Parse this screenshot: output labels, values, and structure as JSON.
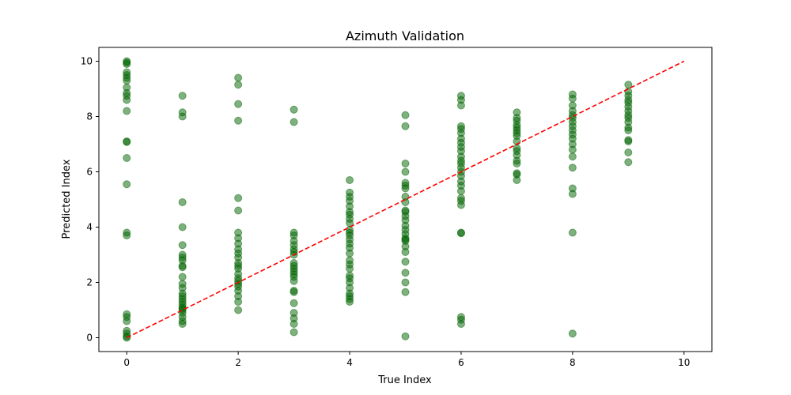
{
  "chart_data": {
    "type": "scatter",
    "title": "Azimuth Validation",
    "xlabel": "True Index",
    "ylabel": "Predicted Index",
    "xlim": [
      -0.5,
      10.5
    ],
    "ylim": [
      -0.5,
      10.5
    ],
    "xticks": [
      0,
      2,
      4,
      6,
      8,
      10
    ],
    "yticks": [
      0,
      2,
      4,
      6,
      8,
      10
    ],
    "grid": false,
    "point_color": "#006400",
    "reference_line": {
      "from": [
        0,
        0
      ],
      "to": [
        10,
        10
      ],
      "color": "#ff0000",
      "style": "dashed"
    },
    "points": [
      [
        0,
        10.0
      ],
      [
        0,
        9.95
      ],
      [
        0,
        9.9
      ],
      [
        0,
        9.6
      ],
      [
        0,
        9.5
      ],
      [
        0,
        9.4
      ],
      [
        0,
        9.3
      ],
      [
        0,
        9.05
      ],
      [
        0,
        8.85
      ],
      [
        0,
        8.75
      ],
      [
        0,
        8.6
      ],
      [
        0,
        8.2
      ],
      [
        0,
        7.1
      ],
      [
        0,
        7.08
      ],
      [
        0,
        6.5
      ],
      [
        0,
        5.55
      ],
      [
        0,
        3.8
      ],
      [
        0,
        3.7
      ],
      [
        0,
        0.85
      ],
      [
        0,
        0.75
      ],
      [
        0,
        0.6
      ],
      [
        0,
        0.25
      ],
      [
        0,
        0.15
      ],
      [
        0,
        0.05
      ],
      [
        0,
        0.0
      ],
      [
        1,
        8.75
      ],
      [
        1,
        8.15
      ],
      [
        1,
        8.0
      ],
      [
        1,
        4.9
      ],
      [
        1,
        4.0
      ],
      [
        1,
        3.35
      ],
      [
        1,
        3.0
      ],
      [
        1,
        2.9
      ],
      [
        1,
        2.8
      ],
      [
        1,
        2.6
      ],
      [
        1,
        2.55
      ],
      [
        1,
        2.2
      ],
      [
        1,
        1.95
      ],
      [
        1,
        1.8
      ],
      [
        1,
        1.6
      ],
      [
        1,
        1.5
      ],
      [
        1,
        1.4
      ],
      [
        1,
        1.3
      ],
      [
        1,
        1.2
      ],
      [
        1,
        1.1
      ],
      [
        1,
        1.05
      ],
      [
        1,
        1.0
      ],
      [
        1,
        0.9
      ],
      [
        1,
        0.75
      ],
      [
        1,
        0.6
      ],
      [
        1,
        0.5
      ],
      [
        2,
        9.4
      ],
      [
        2,
        9.15
      ],
      [
        2,
        8.45
      ],
      [
        2,
        7.85
      ],
      [
        2,
        5.05
      ],
      [
        2,
        4.6
      ],
      [
        2,
        3.8
      ],
      [
        2,
        3.6
      ],
      [
        2,
        3.4
      ],
      [
        2,
        3.2
      ],
      [
        2,
        3.05
      ],
      [
        2,
        2.9
      ],
      [
        2,
        2.7
      ],
      [
        2,
        2.6
      ],
      [
        2,
        2.5
      ],
      [
        2,
        2.3
      ],
      [
        2,
        2.15
      ],
      [
        2,
        2.05
      ],
      [
        2,
        1.95
      ],
      [
        2,
        1.85
      ],
      [
        2,
        1.7
      ],
      [
        2,
        1.5
      ],
      [
        2,
        1.3
      ],
      [
        2,
        1.0
      ],
      [
        3,
        8.25
      ],
      [
        3,
        7.8
      ],
      [
        3,
        3.8
      ],
      [
        3,
        3.7
      ],
      [
        3,
        3.5
      ],
      [
        3,
        3.35
      ],
      [
        3,
        3.2
      ],
      [
        3,
        3.1
      ],
      [
        3,
        3.0
      ],
      [
        3,
        2.7
      ],
      [
        3,
        2.6
      ],
      [
        3,
        2.5
      ],
      [
        3,
        2.4
      ],
      [
        3,
        2.3
      ],
      [
        3,
        2.2
      ],
      [
        3,
        2.05
      ],
      [
        3,
        1.7
      ],
      [
        3,
        1.65
      ],
      [
        3,
        1.25
      ],
      [
        3,
        0.9
      ],
      [
        3,
        0.7
      ],
      [
        3,
        0.5
      ],
      [
        3,
        0.2
      ],
      [
        4,
        5.7
      ],
      [
        4,
        5.25
      ],
      [
        4,
        5.1
      ],
      [
        4,
        4.95
      ],
      [
        4,
        4.75
      ],
      [
        4,
        4.55
      ],
      [
        4,
        4.45
      ],
      [
        4,
        4.3
      ],
      [
        4,
        4.15
      ],
      [
        4,
        3.9
      ],
      [
        4,
        3.8
      ],
      [
        4,
        3.7
      ],
      [
        4,
        3.55
      ],
      [
        4,
        3.4
      ],
      [
        4,
        3.25
      ],
      [
        4,
        3.05
      ],
      [
        4,
        2.8
      ],
      [
        4,
        2.65
      ],
      [
        4,
        2.5
      ],
      [
        4,
        2.25
      ],
      [
        4,
        2.15
      ],
      [
        4,
        2.0
      ],
      [
        4,
        1.8
      ],
      [
        4,
        1.6
      ],
      [
        4,
        1.5
      ],
      [
        4,
        1.4
      ],
      [
        4,
        1.3
      ],
      [
        5,
        8.05
      ],
      [
        5,
        7.65
      ],
      [
        5,
        6.3
      ],
      [
        5,
        6.0
      ],
      [
        5,
        5.6
      ],
      [
        5,
        5.5
      ],
      [
        5,
        5.4
      ],
      [
        5,
        5.1
      ],
      [
        5,
        4.9
      ],
      [
        5,
        4.6
      ],
      [
        5,
        4.55
      ],
      [
        5,
        4.4
      ],
      [
        5,
        4.25
      ],
      [
        5,
        4.05
      ],
      [
        5,
        3.9
      ],
      [
        5,
        3.75
      ],
      [
        5,
        3.6
      ],
      [
        5,
        3.55
      ],
      [
        5,
        3.5
      ],
      [
        5,
        3.3
      ],
      [
        5,
        3.1
      ],
      [
        5,
        2.75
      ],
      [
        5,
        2.35
      ],
      [
        5,
        2.0
      ],
      [
        5,
        1.65
      ],
      [
        5,
        0.05
      ],
      [
        6,
        8.75
      ],
      [
        6,
        8.6
      ],
      [
        6,
        8.4
      ],
      [
        6,
        7.65
      ],
      [
        6,
        7.55
      ],
      [
        6,
        7.4
      ],
      [
        6,
        7.2
      ],
      [
        6,
        7.05
      ],
      [
        6,
        6.9
      ],
      [
        6,
        6.75
      ],
      [
        6,
        6.55
      ],
      [
        6,
        6.4
      ],
      [
        6,
        6.3
      ],
      [
        6,
        6.15
      ],
      [
        6,
        6.0
      ],
      [
        6,
        5.85
      ],
      [
        6,
        5.65
      ],
      [
        6,
        5.5
      ],
      [
        6,
        5.3
      ],
      [
        6,
        5.05
      ],
      [
        6,
        4.95
      ],
      [
        6,
        4.8
      ],
      [
        6,
        3.8
      ],
      [
        6,
        3.78
      ],
      [
        6,
        0.75
      ],
      [
        6,
        0.65
      ],
      [
        6,
        0.5
      ],
      [
        7,
        8.15
      ],
      [
        7,
        7.95
      ],
      [
        7,
        7.85
      ],
      [
        7,
        7.7
      ],
      [
        7,
        7.6
      ],
      [
        7,
        7.5
      ],
      [
        7,
        7.4
      ],
      [
        7,
        7.3
      ],
      [
        7,
        7.1
      ],
      [
        7,
        6.85
      ],
      [
        7,
        6.75
      ],
      [
        7,
        6.6
      ],
      [
        7,
        6.4
      ],
      [
        7,
        6.3
      ],
      [
        7,
        5.95
      ],
      [
        7,
        5.9
      ],
      [
        7,
        5.7
      ],
      [
        8,
        8.8
      ],
      [
        8,
        8.65
      ],
      [
        8,
        8.4
      ],
      [
        8,
        8.2
      ],
      [
        8,
        8.05
      ],
      [
        8,
        7.95
      ],
      [
        8,
        7.8
      ],
      [
        8,
        7.65
      ],
      [
        8,
        7.5
      ],
      [
        8,
        7.35
      ],
      [
        8,
        7.2
      ],
      [
        8,
        7.0
      ],
      [
        8,
        6.8
      ],
      [
        8,
        6.55
      ],
      [
        8,
        6.15
      ],
      [
        8,
        5.4
      ],
      [
        8,
        5.2
      ],
      [
        8,
        3.8
      ],
      [
        8,
        0.15
      ],
      [
        9,
        9.15
      ],
      [
        9,
        8.9
      ],
      [
        9,
        8.75
      ],
      [
        9,
        8.6
      ],
      [
        9,
        8.5
      ],
      [
        9,
        8.35
      ],
      [
        9,
        8.2
      ],
      [
        9,
        8.05
      ],
      [
        9,
        7.95
      ],
      [
        9,
        7.8
      ],
      [
        9,
        7.6
      ],
      [
        9,
        7.5
      ],
      [
        9,
        7.15
      ],
      [
        9,
        7.1
      ],
      [
        9,
        6.7
      ],
      [
        9,
        6.35
      ]
    ]
  }
}
